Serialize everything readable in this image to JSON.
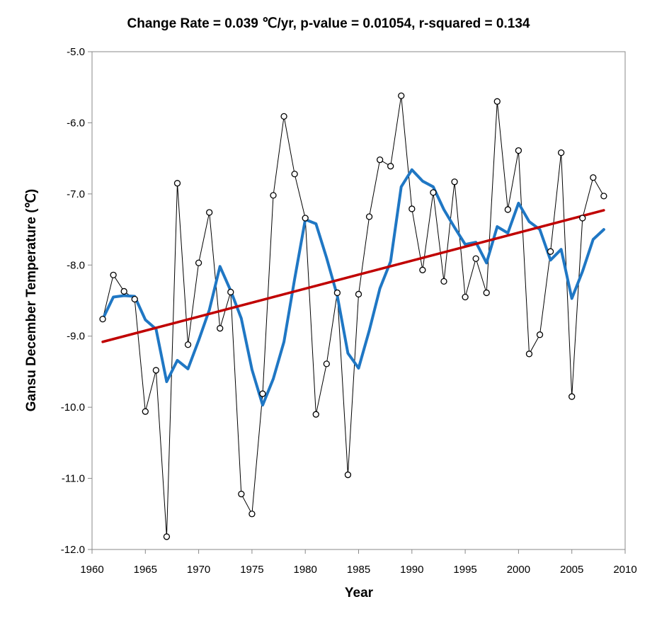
{
  "chart_data": {
    "type": "line",
    "title": "Change Rate =  0.039 ℃/yr,  p-value =  0.01054,  r-squared =  0.134",
    "xlabel": "Year",
    "ylabel": "Gansu December Temperature (℃)",
    "xlim": [
      1960,
      2010
    ],
    "ylim": [
      -12.0,
      -5.0
    ],
    "x_ticks": [
      1960,
      1965,
      1970,
      1975,
      1980,
      1985,
      1990,
      1995,
      2000,
      2005,
      2010
    ],
    "y_ticks": [
      -5.0,
      -6.0,
      -7.0,
      -8.0,
      -9.0,
      -10.0,
      -11.0,
      -12.0
    ],
    "x_tick_labels": [
      "1960",
      "1965",
      "1970",
      "1975",
      "1980",
      "1985",
      "1990",
      "1995",
      "2000",
      "2005",
      "2010"
    ],
    "y_tick_labels": [
      "-5.0",
      "-6.0",
      "-7.0",
      "-8.0",
      "-9.0",
      "-10.0",
      "-11.0",
      "-12.0"
    ],
    "grid": false,
    "legend": "none",
    "x": [
      1961,
      1962,
      1963,
      1964,
      1965,
      1966,
      1967,
      1968,
      1969,
      1970,
      1971,
      1972,
      1973,
      1974,
      1975,
      1976,
      1977,
      1978,
      1979,
      1980,
      1981,
      1982,
      1983,
      1984,
      1985,
      1986,
      1987,
      1988,
      1989,
      1990,
      1991,
      1992,
      1993,
      1994,
      1995,
      1996,
      1997,
      1998,
      1999,
      2000,
      2001,
      2002,
      2003,
      2004,
      2005,
      2006,
      2007,
      2008
    ],
    "series": [
      {
        "style": "thin black line with open circle markers",
        "color": "#000000",
        "values": [
          -8.76,
          -8.14,
          -8.37,
          -8.48,
          -10.06,
          -9.48,
          -11.82,
          -6.85,
          -9.12,
          -7.97,
          -7.26,
          -8.89,
          -8.38,
          -11.22,
          -11.5,
          -9.81,
          -7.02,
          -5.91,
          -6.72,
          -7.34,
          -10.1,
          -9.39,
          -8.39,
          -10.95,
          -8.41,
          -7.32,
          -6.52,
          -6.61,
          -5.62,
          -7.21,
          -8.07,
          -6.98,
          -8.23,
          -6.83,
          -8.45,
          -7.91,
          -8.39,
          -5.7,
          -7.22,
          -6.39,
          -9.25,
          -8.98,
          -7.81,
          -6.42,
          -9.85,
          -7.34,
          -6.77,
          -7.03
        ]
      },
      {
        "style": "thick blue smoothed line",
        "color": "#1f77c4",
        "values": [
          -8.76,
          -8.45,
          -8.43,
          -8.44,
          -8.77,
          -8.9,
          -9.64,
          -9.34,
          -9.46,
          -9.06,
          -8.63,
          -8.02,
          -8.36,
          -8.75,
          -9.47,
          -9.97,
          -9.6,
          -9.08,
          -8.2,
          -7.36,
          -7.42,
          -7.9,
          -8.43,
          -9.24,
          -9.45,
          -8.92,
          -8.33,
          -7.95,
          -6.9,
          -6.66,
          -6.82,
          -6.9,
          -7.22,
          -7.47,
          -7.71,
          -7.68,
          -7.97,
          -7.46,
          -7.55,
          -7.13,
          -7.39,
          -7.5,
          -7.93,
          -7.78,
          -8.47,
          -8.09,
          -7.64,
          -7.5
        ]
      }
    ],
    "trend_line": {
      "color": "#c00000",
      "x": [
        1961,
        2008
      ],
      "y": [
        -9.08,
        -7.23
      ]
    }
  }
}
